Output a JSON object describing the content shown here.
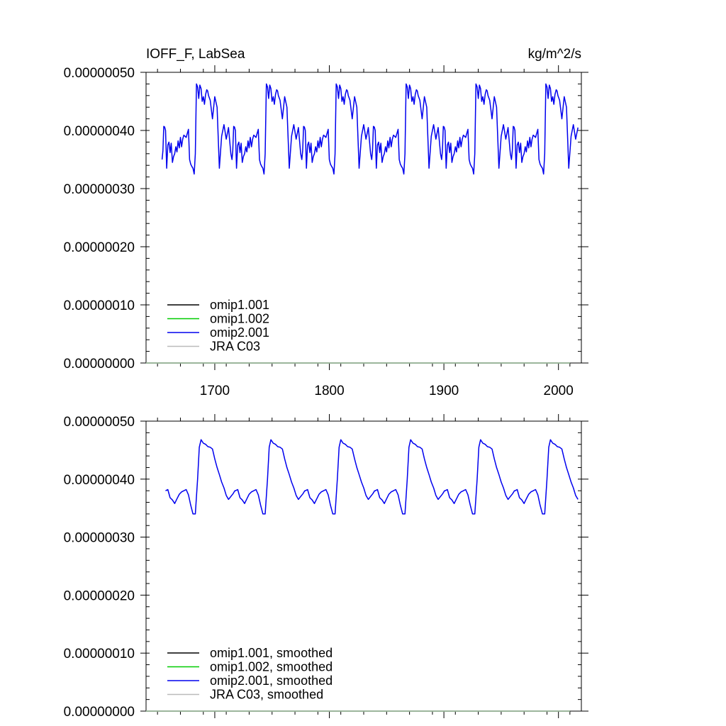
{
  "chart_data": [
    {
      "type": "line",
      "title": "IOFF_F, LabSea",
      "units": "kg/m^2/s",
      "xlim": [
        1640,
        2020
      ],
      "ylim": [
        0,
        5e-07
      ],
      "x_ticks": [
        1700,
        1800,
        1900,
        2000
      ],
      "x_tick_labels": [
        "1700",
        "1800",
        "1900",
        "2000"
      ],
      "y_ticks": [
        0,
        1e-07,
        2e-07,
        3e-07,
        4e-07,
        5e-07
      ],
      "y_tick_labels": [
        "0.00000000",
        "0.00000010",
        "0.00000020",
        "0.00000030",
        "0.00000040",
        "0.00000050"
      ],
      "legend_position": "bottom-left",
      "series": [
        {
          "name": "omip1.001",
          "color": "#000000",
          "x": [
            1640,
            2010
          ],
          "y": [
            0,
            0
          ]
        },
        {
          "name": "omip1.002",
          "color": "#00cc00",
          "x": [
            1640,
            2010
          ],
          "y": [
            0,
            0
          ]
        },
        {
          "name": "omip2.001",
          "color": "#0000ee",
          "cycle_start": 1654,
          "cycle_length": 61,
          "n_cycles": 6,
          "x_end": 2018,
          "cycle_x_offset": [
            0,
            0.7,
            1.5,
            2.2,
            3,
            4,
            5,
            6,
            7,
            8,
            9,
            10,
            11,
            12,
            13,
            14,
            15,
            16,
            17,
            18,
            19,
            20,
            21,
            22,
            23,
            24,
            25,
            26,
            27,
            28,
            29,
            30,
            31,
            32,
            33,
            34,
            35,
            36,
            37,
            38,
            39,
            39.8,
            40.5,
            42,
            44,
            46,
            48,
            50,
            52,
            54,
            56,
            58,
            60
          ],
          "cycle_y": [
            3.5e-07,
            3.65e-07,
            4.07e-07,
            4.06e-07,
            4e-07,
            3.35e-07,
            3.75e-07,
            3.8e-07,
            3.62e-07,
            3.78e-07,
            3.45e-07,
            3.55e-07,
            3.6e-07,
            3.72e-07,
            3.63e-07,
            3.82e-07,
            3.7e-07,
            3.88e-07,
            3.72e-07,
            3.85e-07,
            3.92e-07,
            3.9e-07,
            3.88e-07,
            3.95e-07,
            4.02e-07,
            3.5e-07,
            3.42e-07,
            3.38e-07,
            3.35e-07,
            3.25e-07,
            3.6e-07,
            4.8e-07,
            4.75e-07,
            4.55e-07,
            4.78e-07,
            4.72e-07,
            4.5e-07,
            4.58e-07,
            4.45e-07,
            4.62e-07,
            4.7e-07,
            4.68e-07,
            4.6e-07,
            4.52e-07,
            4.2e-07,
            4.58e-07,
            4.4e-07,
            3.35e-07,
            3.9e-07,
            4.1e-07,
            3.85e-07,
            4.05e-07,
            3.6e-07
          ]
        },
        {
          "name": "JRA C03",
          "color": "#bbbbbb",
          "x": [
            1640,
            2010
          ],
          "y": [
            0,
            0
          ]
        }
      ]
    },
    {
      "type": "line",
      "title": "",
      "xlim": [
        1640,
        2020
      ],
      "ylim": [
        0,
        5e-07
      ],
      "x_ticks": [
        1700,
        1800,
        1900,
        2000
      ],
      "x_tick_labels": [],
      "y_ticks": [
        0,
        1e-07,
        2e-07,
        3e-07,
        4e-07,
        5e-07
      ],
      "y_tick_labels": [
        "0.00000000",
        "0.00000010",
        "0.00000020",
        "0.00000030",
        "0.00000040",
        "0.00000050"
      ],
      "legend_position": "bottom-left",
      "series": [
        {
          "name": "omip1.001, smoothed",
          "color": "#000000",
          "x": [
            1640,
            2010
          ],
          "y": [
            0,
            0
          ]
        },
        {
          "name": "omip1.002, smoothed",
          "color": "#00cc00",
          "x": [
            1640,
            2010
          ],
          "y": [
            0,
            0
          ]
        },
        {
          "name": "omip2.001, smoothed",
          "color": "#0000ee",
          "cycle_start": 1657,
          "cycle_length": 61,
          "n_cycles": 6,
          "x_end": 2018,
          "cycle_x_offset": [
            0,
            2,
            4,
            6,
            8,
            10,
            12,
            14,
            16,
            18,
            20,
            22,
            24,
            26,
            28,
            29.5,
            31,
            33,
            35,
            37,
            39,
            41,
            43,
            45,
            47,
            49,
            51,
            53,
            55,
            57,
            59,
            60.5
          ],
          "cycle_y": [
            3.8e-07,
            3.82e-07,
            3.68e-07,
            3.64e-07,
            3.58e-07,
            3.66e-07,
            3.74e-07,
            3.78e-07,
            3.8e-07,
            3.82e-07,
            3.73e-07,
            3.55e-07,
            3.4e-07,
            3.4e-07,
            4e-07,
            4.55e-07,
            4.68e-07,
            4.62e-07,
            4.6e-07,
            4.56e-07,
            4.55e-07,
            4.52e-07,
            4.35e-07,
            4.2e-07,
            4.08e-07,
            3.95e-07,
            3.85e-07,
            3.72e-07,
            3.65e-07,
            3.7e-07,
            3.75e-07,
            3.8e-07
          ]
        },
        {
          "name": "JRA C03, smoothed",
          "color": "#bbbbbb",
          "x": [
            1640,
            2010
          ],
          "y": [
            0,
            0
          ]
        }
      ]
    }
  ]
}
